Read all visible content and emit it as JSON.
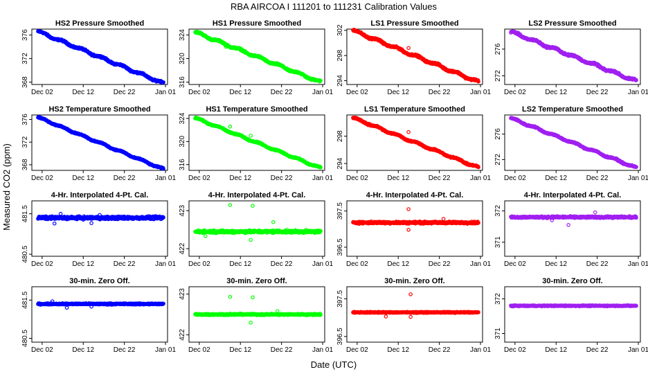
{
  "figure": {
    "title": "RBA   AIRCOA I   111201 to 111231   Calibration Values",
    "xlabel": "Date (UTC)",
    "ylabel": "Measured CO2 (ppm)"
  },
  "chart_data": {
    "type": "scatter",
    "x_domain_days": [
      -1.5,
      31.5
    ],
    "x_ticks": [
      {
        "day": 1,
        "label": "Dec 02"
      },
      {
        "day": 11,
        "label": "Dec 12"
      },
      {
        "day": 21,
        "label": "Dec 22"
      },
      {
        "day": 31,
        "label": "Jan 01"
      }
    ],
    "colors": {
      "HS2": "#0000ff",
      "HS1": "#00ff00",
      "LS1": "#ff0000",
      "LS2": "#a020f0"
    },
    "row_titles": [
      "Pressure Smoothed",
      "Temperature Smoothed",
      "4-Hr. Interpolated 4-Pt. Cal.",
      "30-min. Zero Off."
    ],
    "panels": [
      {
        "row": 0,
        "col": 0,
        "gas": "HS2",
        "title": "HS2 Pressure Smoothed",
        "kind": "trend",
        "ylim": [
          367.6,
          377.0
        ],
        "yticks": [
          368,
          372,
          376
        ],
        "start": 376.6,
        "end": 367.8,
        "noise": 0.2,
        "outliers": []
      },
      {
        "row": 0,
        "col": 1,
        "gas": "HS1",
        "title": "HS1 Pressure Smoothed",
        "kind": "trend",
        "ylim": [
          315.6,
          325.0
        ],
        "yticks": [
          316,
          320,
          324
        ],
        "start": 324.5,
        "end": 316.0,
        "noise": 0.2,
        "outliers": [
          {
            "day": 7.5,
            "v": 322.0
          }
        ]
      },
      {
        "row": 0,
        "col": 2,
        "gas": "LS1",
        "title": "LS1 Pressure Smoothed",
        "kind": "trend",
        "ylim": [
          293.4,
          302.2
        ],
        "yticks": [
          294,
          298,
          302
        ],
        "start": 302.0,
        "end": 293.8,
        "noise": 0.2,
        "outliers": [
          {
            "day": 4.0,
            "v": 300.6
          },
          {
            "day": 13.5,
            "v": 299.2
          }
        ]
      },
      {
        "row": 0,
        "col": 3,
        "gas": "LS2",
        "title": "LS2 Pressure Smoothed",
        "kind": "trend",
        "ylim": [
          270.7,
          279.0
        ],
        "yticks": [
          272,
          276
        ],
        "start": 278.6,
        "end": 271.2,
        "noise": 0.2,
        "outliers": []
      },
      {
        "row": 1,
        "col": 0,
        "gas": "HS2",
        "title": "HS2 Temperature Smoothed",
        "kind": "trend",
        "ylim": [
          367.0,
          376.8
        ],
        "yticks": [
          368,
          372,
          376
        ],
        "start": 376.4,
        "end": 367.2,
        "noise": 0.15,
        "outliers": []
      },
      {
        "row": 1,
        "col": 1,
        "gas": "HS1",
        "title": "HS1 Temperature Smoothed",
        "kind": "trend",
        "ylim": [
          315.0,
          324.6
        ],
        "yticks": [
          316,
          320,
          324
        ],
        "start": 324.1,
        "end": 315.4,
        "noise": 0.15,
        "outliers": [
          {
            "day": 8.5,
            "v": 322.6
          },
          {
            "day": 13.5,
            "v": 321.0
          }
        ]
      },
      {
        "row": 1,
        "col": 2,
        "gas": "LS1",
        "title": "LS1 Temperature Smoothed",
        "kind": "trend",
        "ylim": [
          293.0,
          301.1
        ],
        "yticks": [
          294,
          298
        ],
        "start": 300.7,
        "end": 293.4,
        "noise": 0.15,
        "outliers": [
          {
            "day": 4.0,
            "v": 299.8
          },
          {
            "day": 13.5,
            "v": 298.6
          }
        ]
      },
      {
        "row": 1,
        "col": 3,
        "gas": "LS2",
        "title": "LS2 Temperature Smoothed",
        "kind": "trend",
        "ylim": [
          270.3,
          279.0
        ],
        "yticks": [
          272,
          276
        ],
        "start": 278.5,
        "end": 270.7,
        "noise": 0.15,
        "outliers": []
      },
      {
        "row": 2,
        "col": 0,
        "gas": "HS2",
        "title": "4-Hr. Interpolated 4-Pt. Cal.",
        "kind": "flat",
        "ylim": [
          480.45,
          481.82
        ],
        "yticks": [
          480.5,
          481.5
        ],
        "center": 481.4,
        "noise": 0.05,
        "outliers": [
          {
            "day": 4.0,
            "v": 481.26
          },
          {
            "day": 5.5,
            "v": 481.5
          },
          {
            "day": 13.0,
            "v": 481.27
          },
          {
            "day": 15.0,
            "v": 481.47
          }
        ]
      },
      {
        "row": 2,
        "col": 1,
        "gas": "HS1",
        "title": "4-Hr. Interpolated 4-Pt. Cal.",
        "kind": "flat",
        "ylim": [
          421.8,
          423.26
        ],
        "yticks": [
          422.0,
          423.0
        ],
        "center": 422.45,
        "noise": 0.05,
        "outliers": [
          {
            "day": 8.5,
            "v": 423.15
          },
          {
            "day": 14.0,
            "v": 423.13
          },
          {
            "day": 13.5,
            "v": 422.23
          },
          {
            "day": 19.0,
            "v": 422.7
          },
          {
            "day": 2.5,
            "v": 422.33
          }
        ]
      },
      {
        "row": 2,
        "col": 2,
        "gas": "LS1",
        "title": "4-Hr. Interpolated 4-Pt. Cal.",
        "kind": "flat",
        "ylim": [
          396.25,
          397.78
        ],
        "yticks": [
          396.5,
          397.5
        ],
        "center": 397.18,
        "noise": 0.04,
        "outliers": [
          {
            "day": 13.5,
            "v": 397.55
          },
          {
            "day": 13.5,
            "v": 396.98
          },
          {
            "day": 22.0,
            "v": 397.28
          }
        ]
      },
      {
        "row": 2,
        "col": 3,
        "gas": "LS2",
        "title": "4-Hr. Interpolated 4-Pt. Cal.",
        "kind": "flat",
        "ylim": [
          370.55,
          372.32
        ],
        "yticks": [
          371.0,
          372.0
        ],
        "center": 371.8,
        "noise": 0.04,
        "outliers": [
          {
            "day": 14.0,
            "v": 371.55
          },
          {
            "day": 20.5,
            "v": 371.95
          },
          {
            "day": 10.0,
            "v": 371.7
          }
        ]
      },
      {
        "row": 3,
        "col": 0,
        "gas": "HS2",
        "title": "30-min. Zero Off.",
        "kind": "flat",
        "ylim": [
          480.4,
          481.85
        ],
        "yticks": [
          480.5,
          481.5
        ],
        "center": 481.4,
        "noise": 0.025,
        "outliers": [
          {
            "day": 7.0,
            "v": 481.3
          },
          {
            "day": 13.0,
            "v": 481.33
          },
          {
            "day": 3.5,
            "v": 481.47
          }
        ]
      },
      {
        "row": 3,
        "col": 1,
        "gas": "HS1",
        "title": "30-min. Zero Off.",
        "kind": "flat",
        "ylim": [
          421.82,
          423.18
        ],
        "yticks": [
          422.0,
          423.0
        ],
        "center": 422.5,
        "noise": 0.025,
        "outliers": [
          {
            "day": 8.5,
            "v": 422.93
          },
          {
            "day": 14.0,
            "v": 422.92
          },
          {
            "day": 13.5,
            "v": 422.3
          },
          {
            "day": 20.0,
            "v": 422.58
          }
        ]
      },
      {
        "row": 3,
        "col": 2,
        "gas": "LS1",
        "title": "30-min. Zero Off.",
        "kind": "flat",
        "ylim": [
          396.35,
          397.82
        ],
        "yticks": [
          396.5,
          397.5
        ],
        "center": 397.14,
        "noise": 0.02,
        "outliers": [
          {
            "day": 14.0,
            "v": 397.62
          },
          {
            "day": 14.0,
            "v": 397.02
          },
          {
            "day": 8.0,
            "v": 397.03
          }
        ]
      },
      {
        "row": 3,
        "col": 3,
        "gas": "LS2",
        "title": "30-min. Zero Off.",
        "kind": "flat",
        "ylim": [
          370.75,
          372.35
        ],
        "yticks": [
          371.0,
          372.0
        ],
        "center": 371.8,
        "noise": 0.02,
        "outliers": []
      }
    ]
  }
}
